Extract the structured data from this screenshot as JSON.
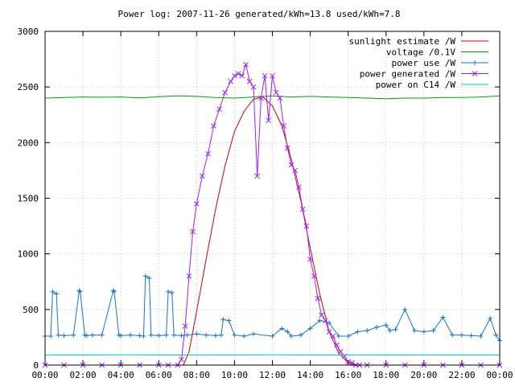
{
  "chart_data": {
    "type": "line",
    "title": "Power log: 2007-11-26 generated/kWh=13.8 used/kWh=7.8",
    "xlabel": "",
    "ylabel": "",
    "xlim": [
      0,
      24
    ],
    "ylim": [
      0,
      3000
    ],
    "x_ticks": [
      {
        "v": 0,
        "label": "00:00"
      },
      {
        "v": 2,
        "label": "02:00"
      },
      {
        "v": 4,
        "label": "04:00"
      },
      {
        "v": 6,
        "label": "06:00"
      },
      {
        "v": 8,
        "label": "08:00"
      },
      {
        "v": 10,
        "label": "10:00"
      },
      {
        "v": 12,
        "label": "12:00"
      },
      {
        "v": 14,
        "label": "14:00"
      },
      {
        "v": 16,
        "label": "16:00"
      },
      {
        "v": 18,
        "label": "18:00"
      },
      {
        "v": 20,
        "label": "20:00"
      },
      {
        "v": 22,
        "label": "22:00"
      },
      {
        "v": 24,
        "label": "00:00"
      }
    ],
    "y_ticks": [
      {
        "v": 0,
        "label": "0"
      },
      {
        "v": 500,
        "label": "500"
      },
      {
        "v": 1000,
        "label": "1000"
      },
      {
        "v": 1500,
        "label": "1500"
      },
      {
        "v": 2000,
        "label": "2000"
      },
      {
        "v": 2500,
        "label": "2500"
      },
      {
        "v": 3000,
        "label": "3000"
      }
    ],
    "grid": true,
    "legend_position": "top-right",
    "series": [
      {
        "name": "sunlight estimate /W",
        "color": "#cc0000",
        "marker": "none",
        "x": [
          0,
          7.3,
          7.6,
          8.0,
          8.5,
          9.0,
          9.5,
          10.0,
          10.5,
          11.0,
          11.5,
          12.0,
          12.5,
          13.0,
          13.5,
          14.0,
          14.5,
          15.0,
          15.5,
          16.0,
          16.3,
          24
        ],
        "y": [
          0,
          0,
          120,
          480,
          950,
          1400,
          1790,
          2100,
          2280,
          2390,
          2410,
          2330,
          2150,
          1850,
          1480,
          1050,
          640,
          300,
          110,
          20,
          0,
          0
        ]
      },
      {
        "name": "voltage /0.1V",
        "color": "#00a000",
        "marker": "none",
        "x": [
          0,
          1,
          2,
          3,
          4,
          5,
          6,
          7,
          8,
          9,
          10,
          11,
          12,
          13,
          14,
          15,
          16,
          17,
          18,
          19,
          20,
          21,
          22,
          23,
          24
        ],
        "y": [
          2400,
          2405,
          2410,
          2408,
          2410,
          2402,
          2412,
          2420,
          2415,
          2405,
          2400,
          2410,
          2420,
          2410,
          2415,
          2410,
          2405,
          2400,
          2395,
          2400,
          2400,
          2405,
          2405,
          2410,
          2420
        ]
      },
      {
        "name": "power use /W",
        "color": "#1874cd",
        "marker": "plus",
        "x": [
          0,
          0.3,
          0.4,
          0.6,
          0.7,
          1.0,
          1.5,
          1.8,
          1.85,
          2.1,
          2.2,
          2.5,
          3.0,
          3.6,
          3.65,
          3.9,
          4.0,
          4.5,
          5.0,
          5.2,
          5.3,
          5.5,
          5.6,
          6.0,
          6.4,
          6.5,
          6.7,
          6.8,
          7.2,
          7.5,
          8.0,
          8.5,
          9.0,
          9.3,
          9.4,
          9.7,
          10.0,
          10.5,
          11.0,
          12.0,
          12.5,
          12.8,
          13.0,
          13.5,
          14.0,
          14.5,
          15.0,
          15.5,
          16.0,
          16.5,
          17.0,
          17.5,
          18.0,
          18.2,
          18.5,
          19.0,
          19.5,
          20.0,
          20.5,
          21.0,
          21.5,
          22.0,
          22.5,
          23.0,
          23.5,
          23.8,
          24.0
        ],
        "y": [
          260,
          260,
          660,
          640,
          270,
          265,
          270,
          670,
          660,
          270,
          265,
          270,
          270,
          670,
          660,
          270,
          265,
          270,
          265,
          260,
          800,
          780,
          270,
          265,
          270,
          660,
          650,
          270,
          265,
          270,
          280,
          270,
          265,
          270,
          410,
          400,
          270,
          260,
          280,
          260,
          330,
          300,
          260,
          270,
          330,
          400,
          380,
          260,
          260,
          300,
          310,
          340,
          360,
          310,
          320,
          500,
          310,
          300,
          310,
          430,
          270,
          270,
          265,
          260,
          420,
          270,
          220
        ]
      },
      {
        "name": "power generated /W",
        "color": "#a020f0",
        "marker": "cross",
        "x": [
          0,
          1,
          2,
          3,
          4,
          5,
          6,
          6.5,
          7.0,
          7.2,
          7.4,
          7.6,
          7.8,
          8.0,
          8.3,
          8.6,
          8.9,
          9.2,
          9.5,
          9.8,
          10.0,
          10.2,
          10.4,
          10.6,
          10.8,
          11.0,
          11.2,
          11.4,
          11.6,
          11.8,
          12.0,
          12.2,
          12.4,
          12.6,
          12.8,
          13.0,
          13.2,
          13.4,
          13.6,
          13.8,
          14.0,
          14.2,
          14.4,
          14.6,
          14.8,
          15.0,
          15.2,
          15.4,
          15.6,
          15.8,
          16.0,
          16.2,
          16.4,
          16.6,
          17,
          18,
          19,
          20,
          21,
          22,
          23,
          24
        ],
        "y": [
          0,
          0,
          0,
          0,
          0,
          0,
          0,
          0,
          0,
          50,
          350,
          800,
          1200,
          1450,
          1700,
          1900,
          2150,
          2300,
          2450,
          2550,
          2600,
          2620,
          2600,
          2700,
          2550,
          2500,
          1700,
          2400,
          2600,
          2200,
          2600,
          2450,
          2400,
          2150,
          1950,
          1800,
          1750,
          1600,
          1400,
          1250,
          950,
          800,
          600,
          450,
          400,
          300,
          260,
          180,
          120,
          80,
          30,
          20,
          0,
          0,
          0,
          0,
          0,
          0,
          0,
          0,
          0,
          0
        ]
      },
      {
        "name": "power on C14 /W",
        "color": "#00c8c8",
        "marker": "none",
        "x": [
          0,
          4,
          8,
          12,
          16,
          20,
          24
        ],
        "y": [
          90,
          92,
          90,
          92,
          90,
          91,
          90
        ]
      }
    ]
  }
}
